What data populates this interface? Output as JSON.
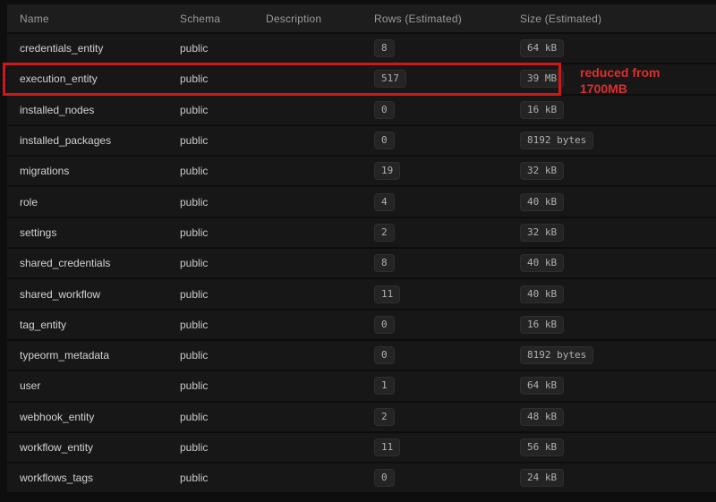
{
  "colors": {
    "page_bg": "#0e0e0e",
    "row_bg": "#171717",
    "header_bg": "#1d1d1d",
    "badge_bg": "#242424",
    "annotation_red": "#d01818",
    "annotation_text_red": "#dd2e2e"
  },
  "table": {
    "columns": [
      "Name",
      "Schema",
      "Description",
      "Rows (Estimated)",
      "Size (Estimated)"
    ],
    "rows": [
      {
        "name": "credentials_entity",
        "schema": "public",
        "description": "",
        "rows": "8",
        "size": "64 kB"
      },
      {
        "name": "execution_entity",
        "schema": "public",
        "description": "",
        "rows": "517",
        "size": "39 MB"
      },
      {
        "name": "installed_nodes",
        "schema": "public",
        "description": "",
        "rows": "0",
        "size": "16 kB"
      },
      {
        "name": "installed_packages",
        "schema": "public",
        "description": "",
        "rows": "0",
        "size": "8192 bytes"
      },
      {
        "name": "migrations",
        "schema": "public",
        "description": "",
        "rows": "19",
        "size": "32 kB"
      },
      {
        "name": "role",
        "schema": "public",
        "description": "",
        "rows": "4",
        "size": "40 kB"
      },
      {
        "name": "settings",
        "schema": "public",
        "description": "",
        "rows": "2",
        "size": "32 kB"
      },
      {
        "name": "shared_credentials",
        "schema": "public",
        "description": "",
        "rows": "8",
        "size": "40 kB"
      },
      {
        "name": "shared_workflow",
        "schema": "public",
        "description": "",
        "rows": "11",
        "size": "40 kB"
      },
      {
        "name": "tag_entity",
        "schema": "public",
        "description": "",
        "rows": "0",
        "size": "16 kB"
      },
      {
        "name": "typeorm_metadata",
        "schema": "public",
        "description": "",
        "rows": "0",
        "size": "8192 bytes"
      },
      {
        "name": "user",
        "schema": "public",
        "description": "",
        "rows": "1",
        "size": "64 kB"
      },
      {
        "name": "webhook_entity",
        "schema": "public",
        "description": "",
        "rows": "2",
        "size": "48 kB"
      },
      {
        "name": "workflow_entity",
        "schema": "public",
        "description": "",
        "rows": "11",
        "size": "56 kB"
      },
      {
        "name": "workflows_tags",
        "schema": "public",
        "description": "",
        "rows": "0",
        "size": "24 kB"
      }
    ]
  },
  "annotation": {
    "highlighted_row": "execution_entity",
    "line1": "reduced from",
    "line2": "1700MB"
  }
}
